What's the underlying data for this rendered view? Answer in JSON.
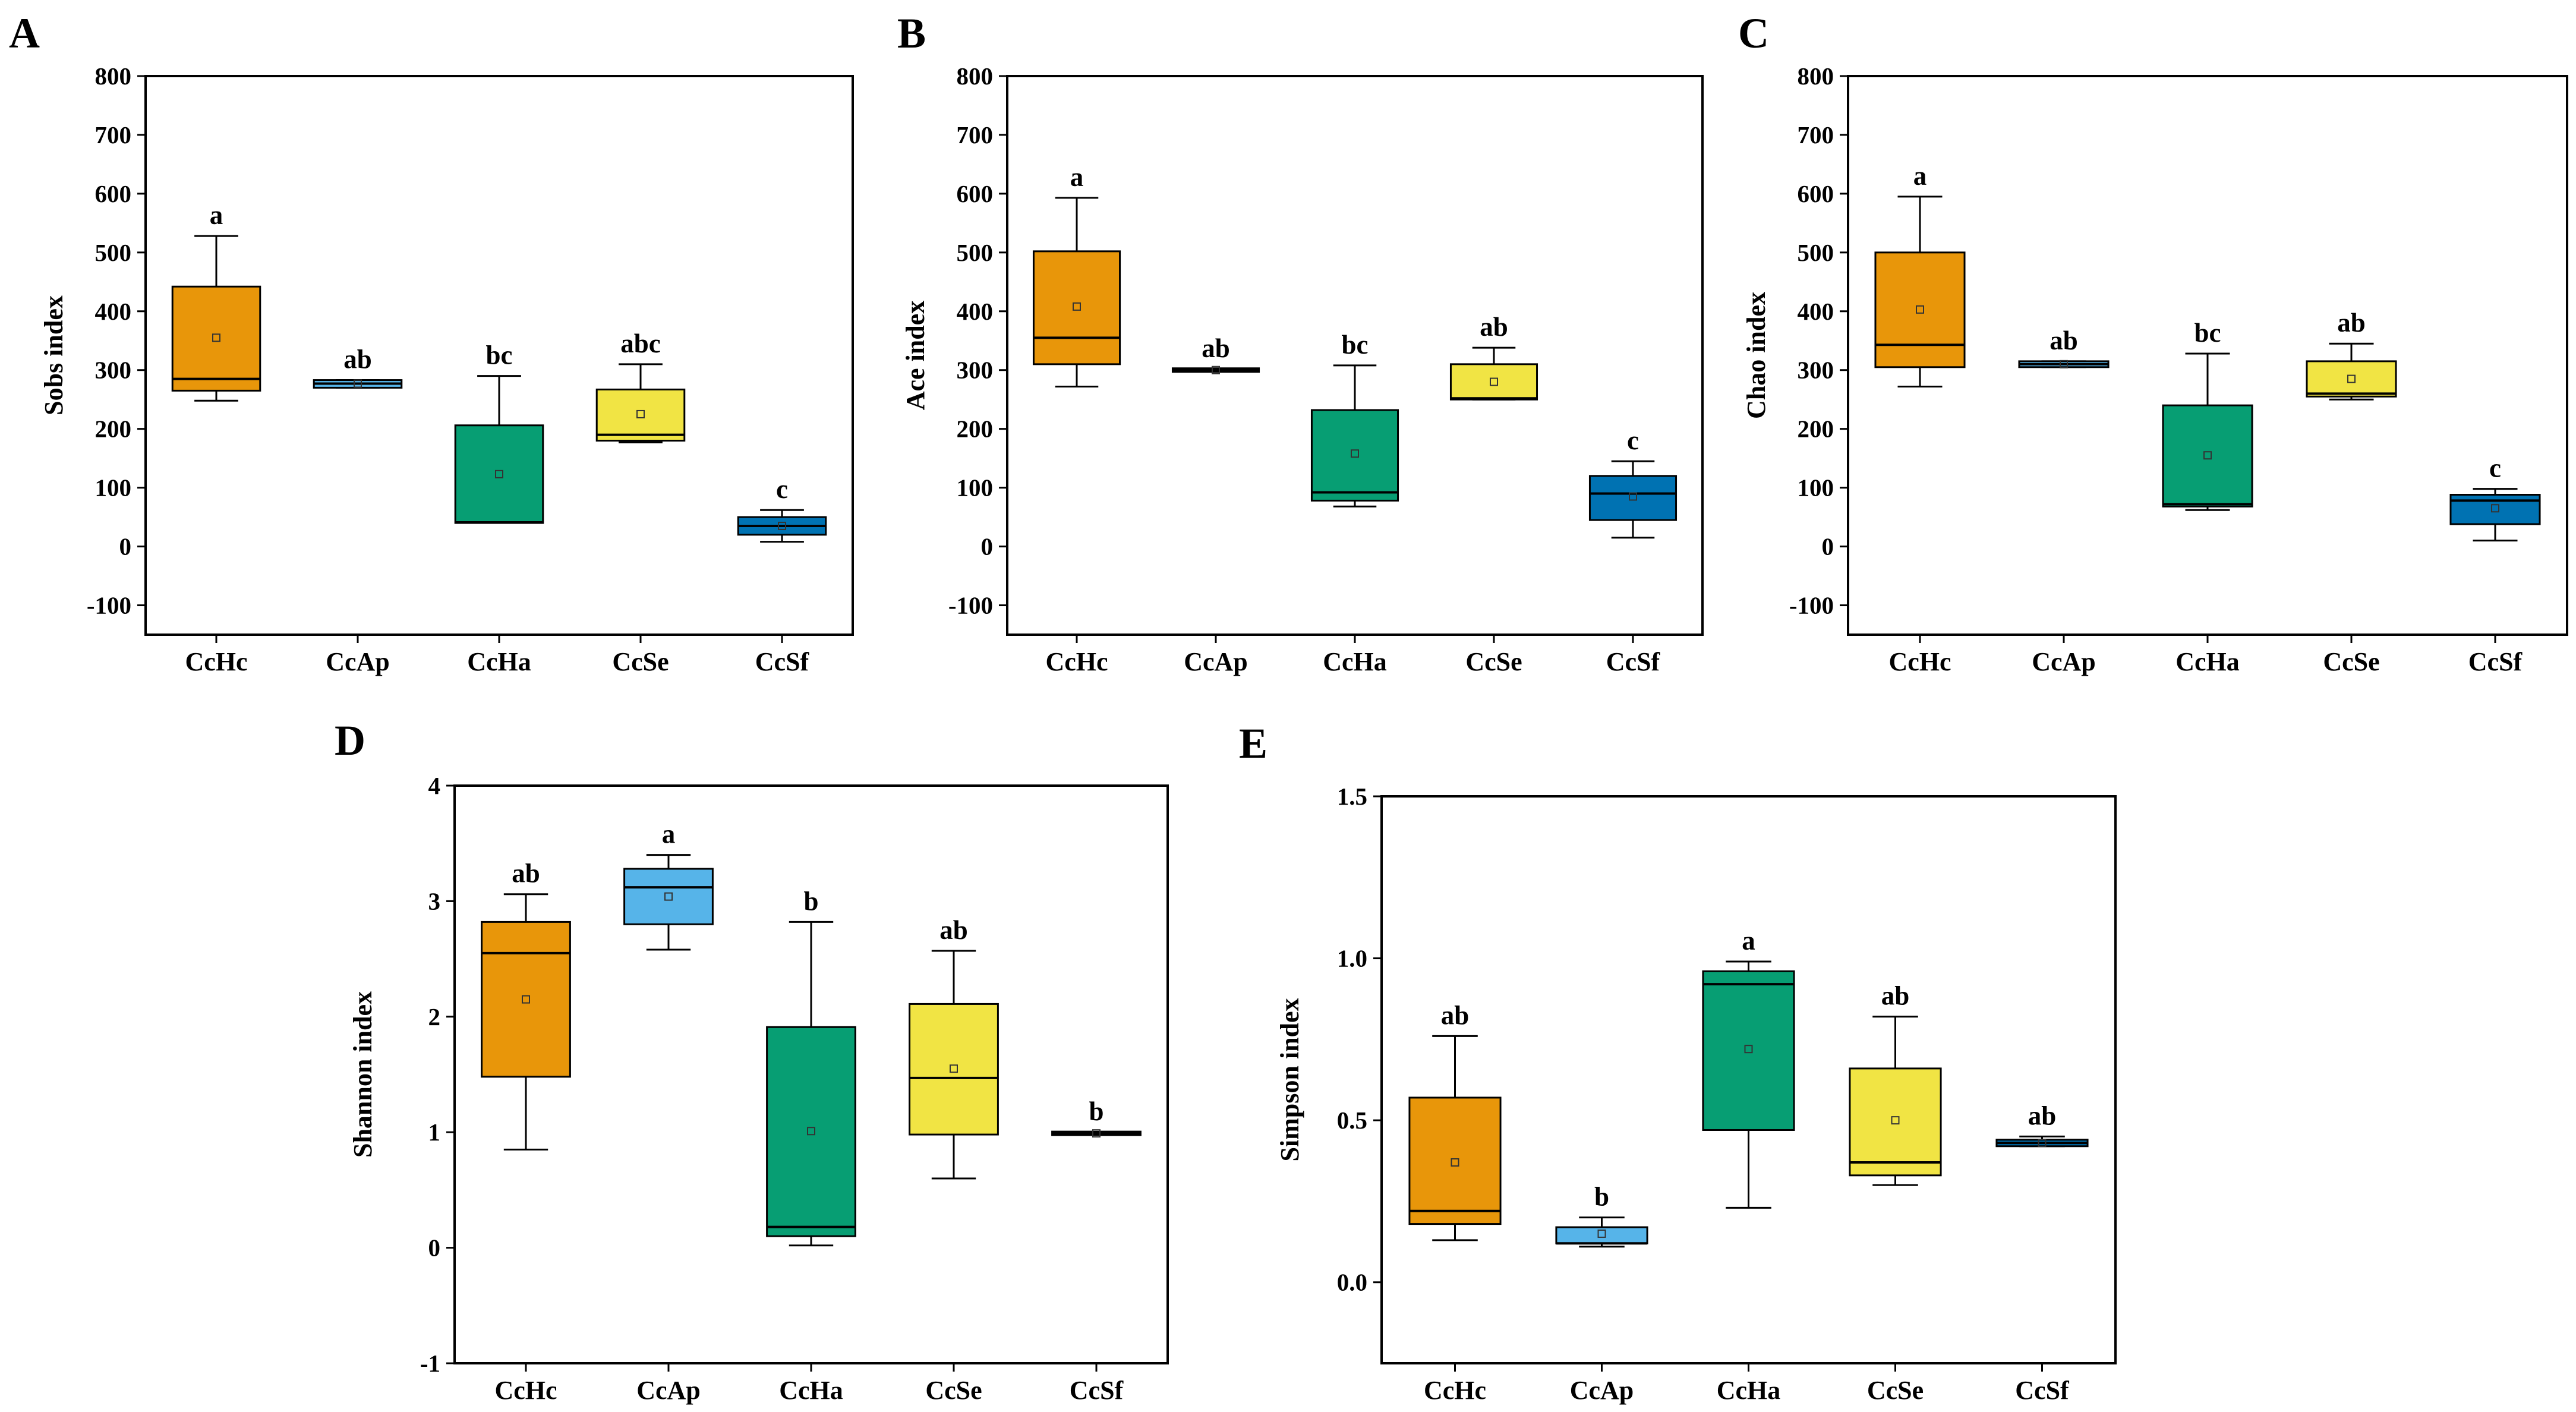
{
  "figure_colors": {
    "CcHc": "#E8960A",
    "CcAp": "#56B4E9",
    "CcHa": "#079E73",
    "CcSe": "#F1E444",
    "CcSf": "#0072B2"
  },
  "chart_data": [
    {
      "panel": "A",
      "type": "box",
      "ylabel": "Sobs index",
      "ylim": [
        -150,
        800
      ],
      "yticks": [
        -100,
        0,
        100,
        200,
        300,
        400,
        500,
        600,
        700,
        800
      ],
      "categories": [
        "CcHc",
        "CcAp",
        "CcHa",
        "CcSe",
        "CcSf"
      ],
      "boxes": [
        {
          "category": "CcHc",
          "whisker_low": 248,
          "q1": 265,
          "median": 285,
          "q3": 442,
          "whisker_high": 528,
          "mean": 355,
          "label": "a"
        },
        {
          "category": "CcAp",
          "whisker_low": 270,
          "q1": 270,
          "median": 277,
          "q3": 283,
          "whisker_high": 283,
          "mean": 277,
          "label": "ab"
        },
        {
          "category": "CcHa",
          "whisker_low": 40,
          "q1": 40,
          "median": 41,
          "q3": 206,
          "whisker_high": 290,
          "mean": 123,
          "label": "bc"
        },
        {
          "category": "CcSe",
          "whisker_low": 177,
          "q1": 180,
          "median": 190,
          "q3": 267,
          "whisker_high": 310,
          "mean": 225,
          "label": "abc"
        },
        {
          "category": "CcSf",
          "whisker_low": 8,
          "q1": 20,
          "median": 35,
          "q3": 50,
          "whisker_high": 62,
          "mean": 35,
          "label": "c"
        }
      ]
    },
    {
      "panel": "B",
      "type": "box",
      "ylabel": "Ace index",
      "ylim": [
        -150,
        800
      ],
      "yticks": [
        -100,
        0,
        100,
        200,
        300,
        400,
        500,
        600,
        700,
        800
      ],
      "categories": [
        "CcHc",
        "CcAp",
        "CcHa",
        "CcSe",
        "CcSf"
      ],
      "boxes": [
        {
          "category": "CcHc",
          "whisker_low": 272,
          "q1": 310,
          "median": 355,
          "q3": 502,
          "whisker_high": 593,
          "mean": 408,
          "label": "a"
        },
        {
          "category": "CcAp",
          "whisker_low": 298,
          "q1": 298,
          "median": 300,
          "q3": 302,
          "whisker_high": 302,
          "mean": 300,
          "label": "ab"
        },
        {
          "category": "CcHa",
          "whisker_low": 68,
          "q1": 78,
          "median": 92,
          "q3": 232,
          "whisker_high": 308,
          "mean": 158,
          "label": "bc"
        },
        {
          "category": "CcSe",
          "whisker_low": 250,
          "q1": 250,
          "median": 252,
          "q3": 310,
          "whisker_high": 338,
          "mean": 280,
          "label": "ab"
        },
        {
          "category": "CcSf",
          "whisker_low": 15,
          "q1": 45,
          "median": 90,
          "q3": 120,
          "whisker_high": 145,
          "mean": 85,
          "label": "c"
        }
      ]
    },
    {
      "panel": "C",
      "type": "box",
      "ylabel": "Chao index",
      "ylim": [
        -150,
        800
      ],
      "yticks": [
        -100,
        0,
        100,
        200,
        300,
        400,
        500,
        600,
        700,
        800
      ],
      "categories": [
        "CcHc",
        "CcAp",
        "CcHa",
        "CcSe",
        "CcSf"
      ],
      "boxes": [
        {
          "category": "CcHc",
          "whisker_low": 272,
          "q1": 305,
          "median": 343,
          "q3": 500,
          "whisker_high": 595,
          "mean": 403,
          "label": "a"
        },
        {
          "category": "CcAp",
          "whisker_low": 305,
          "q1": 305,
          "median": 310,
          "q3": 315,
          "whisker_high": 315,
          "mean": 310,
          "label": "ab"
        },
        {
          "category": "CcHa",
          "whisker_low": 62,
          "q1": 68,
          "median": 72,
          "q3": 240,
          "whisker_high": 328,
          "mean": 155,
          "label": "bc"
        },
        {
          "category": "CcSe",
          "whisker_low": 250,
          "q1": 255,
          "median": 260,
          "q3": 315,
          "whisker_high": 345,
          "mean": 285,
          "label": "ab"
        },
        {
          "category": "CcSf",
          "whisker_low": 10,
          "q1": 38,
          "median": 78,
          "q3": 88,
          "whisker_high": 98,
          "mean": 65,
          "label": "c"
        }
      ]
    },
    {
      "panel": "D",
      "type": "box",
      "ylabel": "Shannon index",
      "ylim": [
        -1,
        4
      ],
      "yticks": [
        -1,
        0,
        1,
        2,
        3,
        4
      ],
      "categories": [
        "CcHc",
        "CcAp",
        "CcHa",
        "CcSe",
        "CcSf"
      ],
      "boxes": [
        {
          "category": "CcHc",
          "whisker_low": 0.85,
          "q1": 1.48,
          "median": 2.55,
          "q3": 2.82,
          "whisker_high": 3.06,
          "mean": 2.15,
          "label": "ab"
        },
        {
          "category": "CcAp",
          "whisker_low": 2.58,
          "q1": 2.8,
          "median": 3.12,
          "q3": 3.28,
          "whisker_high": 3.4,
          "mean": 3.04,
          "label": "a"
        },
        {
          "category": "CcHa",
          "whisker_low": 0.02,
          "q1": 0.1,
          "median": 0.18,
          "q3": 1.91,
          "whisker_high": 2.82,
          "mean": 1.01,
          "label": "b"
        },
        {
          "category": "CcSe",
          "whisker_low": 0.6,
          "q1": 0.98,
          "median": 1.47,
          "q3": 2.11,
          "whisker_high": 2.57,
          "mean": 1.55,
          "label": "ab"
        },
        {
          "category": "CcSf",
          "whisker_low": 0.98,
          "q1": 0.98,
          "median": 0.99,
          "q3": 1.0,
          "whisker_high": 1.0,
          "mean": 0.99,
          "label": "b"
        }
      ]
    },
    {
      "panel": "E",
      "type": "box",
      "ylabel": "Simpson index",
      "ylim": [
        -0.25,
        1.5
      ],
      "yticks": [
        0.0,
        0.5,
        1.0,
        1.5
      ],
      "categories": [
        "CcHc",
        "CcAp",
        "CcHa",
        "CcSe",
        "CcSf"
      ],
      "boxes": [
        {
          "category": "CcHc",
          "whisker_low": 0.13,
          "q1": 0.18,
          "median": 0.22,
          "q3": 0.57,
          "whisker_high": 0.76,
          "mean": 0.37,
          "label": "ab"
        },
        {
          "category": "CcAp",
          "whisker_low": 0.11,
          "q1": 0.12,
          "median": 0.12,
          "q3": 0.17,
          "whisker_high": 0.2,
          "mean": 0.15,
          "label": "b"
        },
        {
          "category": "CcHa",
          "whisker_low": 0.23,
          "q1": 0.47,
          "median": 0.92,
          "q3": 0.96,
          "whisker_high": 0.99,
          "mean": 0.72,
          "label": "a"
        },
        {
          "category": "CcSe",
          "whisker_low": 0.3,
          "q1": 0.33,
          "median": 0.37,
          "q3": 0.66,
          "whisker_high": 0.82,
          "mean": 0.5,
          "label": "ab"
        },
        {
          "category": "CcSf",
          "whisker_low": 0.42,
          "q1": 0.42,
          "median": 0.43,
          "q3": 0.44,
          "whisker_high": 0.45,
          "mean": 0.43,
          "label": "ab"
        }
      ]
    }
  ]
}
